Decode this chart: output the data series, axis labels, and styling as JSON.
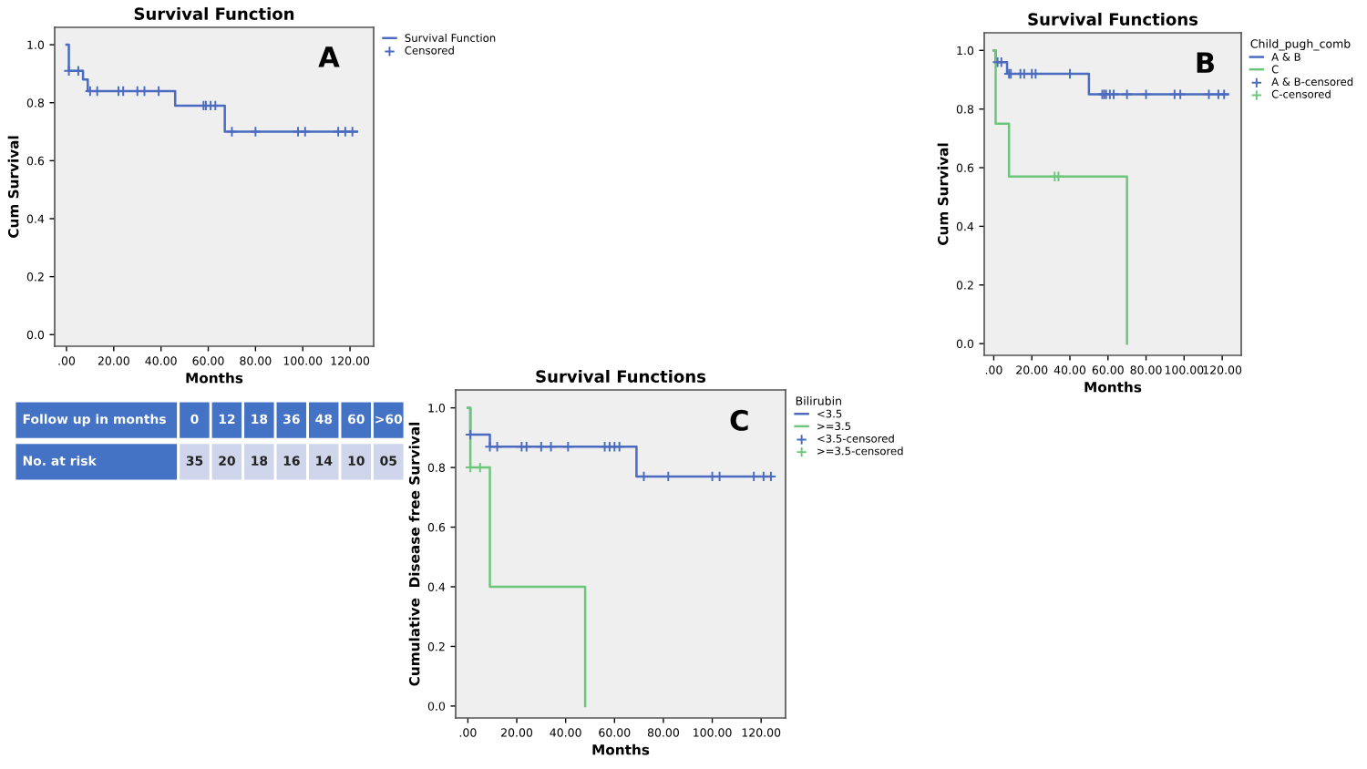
{
  "chart_data": [
    {
      "type": "step",
      "title": "Survival Function",
      "xlabel": "Months",
      "ylabel": "Cum Survival",
      "annotations": [
        "A"
      ],
      "legend": "top right",
      "xlim": [
        -5,
        130
      ],
      "ylim": [
        -0.04,
        1.06
      ],
      "xticks": [
        {
          "value": 0,
          "label": ".00"
        },
        {
          "value": 20,
          "label": "20.00"
        },
        {
          "value": 40,
          "label": "40.00"
        },
        {
          "value": 60,
          "label": "60.00"
        },
        {
          "value": 80,
          "label": "80.00"
        },
        {
          "value": 100,
          "label": "100.00"
        },
        {
          "value": 120,
          "label": "120.00"
        }
      ],
      "yticks": [
        {
          "value": 0,
          "label": "0.0"
        },
        {
          "value": 0.2,
          "label": "0.2"
        },
        {
          "value": 0.4,
          "label": "0.4"
        },
        {
          "value": 0.6,
          "label": "0.6"
        },
        {
          "value": 0.8,
          "label": "0.8"
        },
        {
          "value": 1.0,
          "label": "1.0"
        }
      ],
      "series": [
        {
          "name": "Survival Function",
          "type": "step",
          "color": "#4a6bbf",
          "x": [
            0,
            1,
            7,
            9,
            46,
            67,
            123
          ],
          "values": [
            1.0,
            0.91,
            0.88,
            0.84,
            0.79,
            0.7,
            0.7
          ]
        },
        {
          "name": "Censored",
          "type": "scatter",
          "marker": "cross",
          "color": "#4a6bbf",
          "x": [
            1,
            5,
            10,
            13,
            22,
            24,
            30,
            33,
            39,
            58,
            59,
            61,
            63,
            70,
            80,
            98,
            101,
            115,
            118,
            121
          ],
          "values": [
            0.91,
            0.91,
            0.84,
            0.84,
            0.84,
            0.84,
            0.84,
            0.84,
            0.84,
            0.79,
            0.79,
            0.79,
            0.79,
            0.7,
            0.7,
            0.7,
            0.7,
            0.7,
            0.7,
            0.7
          ]
        }
      ]
    },
    {
      "type": "other",
      "annotations": [
        "Follow up in months",
        "0",
        "12",
        "18",
        "36",
        "48",
        "60",
        ">60",
        "No. at risk",
        "35",
        "20",
        "18",
        "16",
        "14",
        "10",
        "05"
      ]
    },
    {
      "type": "step",
      "title": "Survival Functions",
      "xlabel": "Months",
      "ylabel": "Cum Survival",
      "legend_title": "Child_pugh_comb",
      "annotations": [
        "B"
      ],
      "legend": "top right",
      "xlim": [
        -5,
        130
      ],
      "ylim": [
        -0.04,
        1.06
      ],
      "xticks": [
        {
          "value": 0,
          "label": ".00"
        },
        {
          "value": 20,
          "label": "20.00"
        },
        {
          "value": 40,
          "label": "40.00"
        },
        {
          "value": 60,
          "label": "60.00"
        },
        {
          "value": 80,
          "label": "80.00"
        },
        {
          "value": 100,
          "label": "100.00"
        },
        {
          "value": 120,
          "label": "120.00"
        }
      ],
      "yticks": [
        {
          "value": 0,
          "label": "0.0"
        },
        {
          "value": 0.2,
          "label": "0.2"
        },
        {
          "value": 0.4,
          "label": "0.4"
        },
        {
          "value": 0.6,
          "label": "0.6"
        },
        {
          "value": 0.8,
          "label": "0.8"
        },
        {
          "value": 1.0,
          "label": "1.0"
        }
      ],
      "series": [
        {
          "name": "A & B",
          "type": "step",
          "color": "#4a6bbf",
          "x": [
            0,
            1,
            7,
            50,
            123
          ],
          "values": [
            1.0,
            0.96,
            0.92,
            0.85,
            0.85
          ]
        },
        {
          "name": "C",
          "type": "step",
          "color": "#6cc77a",
          "x": [
            0,
            1,
            8,
            70,
            70
          ],
          "values": [
            1.0,
            0.75,
            0.57,
            0.0,
            0.0
          ]
        },
        {
          "name": "A & B-censored",
          "type": "scatter",
          "marker": "cross",
          "color": "#4a6bbf",
          "x": [
            2,
            4,
            8,
            9,
            14,
            16,
            20,
            22,
            40,
            57,
            58,
            59,
            61,
            63,
            70,
            80,
            95,
            98,
            113,
            118,
            121
          ],
          "values": [
            0.96,
            0.96,
            0.92,
            0.92,
            0.92,
            0.92,
            0.92,
            0.92,
            0.92,
            0.85,
            0.85,
            0.85,
            0.85,
            0.85,
            0.85,
            0.85,
            0.85,
            0.85,
            0.85,
            0.85,
            0.85
          ]
        },
        {
          "name": "C-censored",
          "type": "scatter",
          "marker": "cross",
          "color": "#6cc77a",
          "x": [
            32,
            34
          ],
          "values": [
            0.57,
            0.57
          ]
        }
      ]
    },
    {
      "type": "step",
      "title": "Survival Functions",
      "xlabel": "Months",
      "ylabel": "Cumulative  Disease free Survival",
      "legend_title": "Bilirubin",
      "annotations": [
        "C"
      ],
      "legend": "top right",
      "xlim": [
        -5,
        130
      ],
      "ylim": [
        -0.04,
        1.06
      ],
      "xticks": [
        {
          "value": 0,
          "label": ".00"
        },
        {
          "value": 20,
          "label": "20.00"
        },
        {
          "value": 40,
          "label": "40.00"
        },
        {
          "value": 60,
          "label": "60.00"
        },
        {
          "value": 80,
          "label": "80.00"
        },
        {
          "value": 100,
          "label": "100.00"
        },
        {
          "value": 120,
          "label": "120.00"
        }
      ],
      "yticks": [
        {
          "value": 0,
          "label": "0.0"
        },
        {
          "value": 0.2,
          "label": "0.2"
        },
        {
          "value": 0.4,
          "label": "0.4"
        },
        {
          "value": 0.6,
          "label": "0.6"
        },
        {
          "value": 0.8,
          "label": "0.8"
        },
        {
          "value": 1.0,
          "label": "1.0"
        }
      ],
      "series": [
        {
          "name": "<3.5",
          "type": "step",
          "color": "#4a6bbf",
          "x": [
            0,
            1,
            9,
            69,
            124
          ],
          "values": [
            1.0,
            0.91,
            0.87,
            0.77,
            0.77
          ]
        },
        {
          "name": ">=3.5",
          "type": "step",
          "color": "#6cc77a",
          "x": [
            0,
            1,
            9,
            48,
            48
          ],
          "values": [
            1.0,
            0.8,
            0.4,
            0.0,
            0.0
          ]
        },
        {
          "name": "<3.5-censored",
          "type": "scatter",
          "marker": "cross",
          "color": "#4a6bbf",
          "x": [
            1,
            9,
            12,
            22,
            24,
            30,
            34,
            41,
            56,
            58,
            60,
            62,
            72,
            82,
            100,
            103,
            117,
            121,
            124
          ],
          "values": [
            0.91,
            0.87,
            0.87,
            0.87,
            0.87,
            0.87,
            0.87,
            0.87,
            0.87,
            0.87,
            0.87,
            0.87,
            0.77,
            0.77,
            0.77,
            0.77,
            0.77,
            0.77,
            0.77
          ]
        },
        {
          "name": ">=3.5-censored",
          "type": "scatter",
          "marker": "cross",
          "color": "#6cc77a",
          "x": [
            1,
            5
          ],
          "values": [
            0.8,
            0.8
          ]
        }
      ]
    }
  ]
}
